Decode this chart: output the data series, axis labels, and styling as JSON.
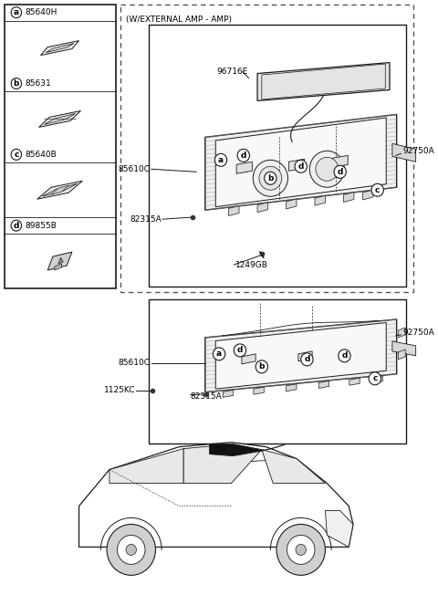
{
  "bg_color": "#ffffff",
  "border_color": "#1a1a1a",
  "fig_width": 4.8,
  "fig_height": 6.52,
  "dpi": 100,
  "legend_parts": [
    {
      "id": "a",
      "num": "85640H"
    },
    {
      "id": "b",
      "num": "85631"
    },
    {
      "id": "c",
      "num": "85640B"
    },
    {
      "id": "d",
      "num": "89855B"
    }
  ],
  "top_label": "(W/EXTERNAL AMP - AMP)"
}
